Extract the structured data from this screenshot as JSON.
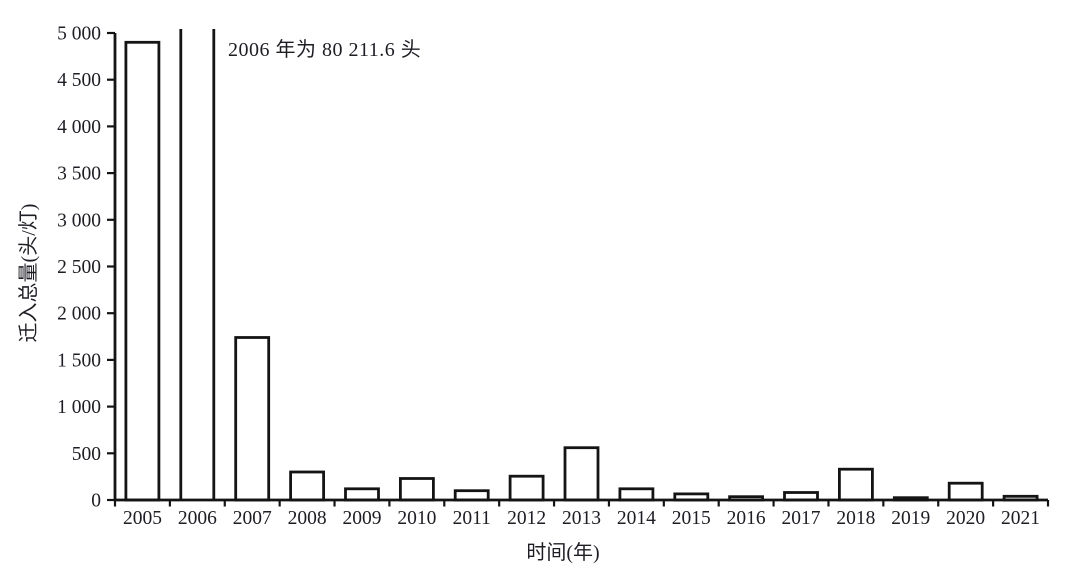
{
  "figure": {
    "background": "#ffffff",
    "text_color": "#1d1d24"
  },
  "chart_data": {
    "type": "bar",
    "title": "",
    "xlabel": "时间(年)",
    "ylabel": "迁入总量(头/灯)",
    "categories": [
      "2005",
      "2006",
      "2007",
      "2008",
      "2009",
      "2010",
      "2011",
      "2012",
      "2013",
      "2014",
      "2015",
      "2016",
      "2017",
      "2018",
      "2019",
      "2020",
      "2021"
    ],
    "values": [
      4900,
      80211.6,
      1740,
      300,
      120,
      230,
      100,
      255,
      560,
      120,
      65,
      35,
      80,
      330,
      25,
      180,
      40
    ],
    "ylim": [
      0,
      5000
    ],
    "ytick_values": [
      0,
      500,
      1000,
      1500,
      2000,
      2500,
      3000,
      3500,
      4000,
      4500,
      5000
    ],
    "ytick_labels": [
      "0",
      "500",
      "1 000",
      "1 500",
      "2 000",
      "2 500",
      "3 000",
      "3 500",
      "4 000",
      "4 500",
      "5 000"
    ],
    "annotation": {
      "text": "2006 年为 80 211.6 头",
      "target_category": "2006",
      "target_value": 80211.6
    },
    "grid": false,
    "legend_position": "none",
    "bar_fill": "#ffffff",
    "bar_stroke": "#141414",
    "axis_color": "#141414",
    "text_color": "#1d1d24"
  }
}
